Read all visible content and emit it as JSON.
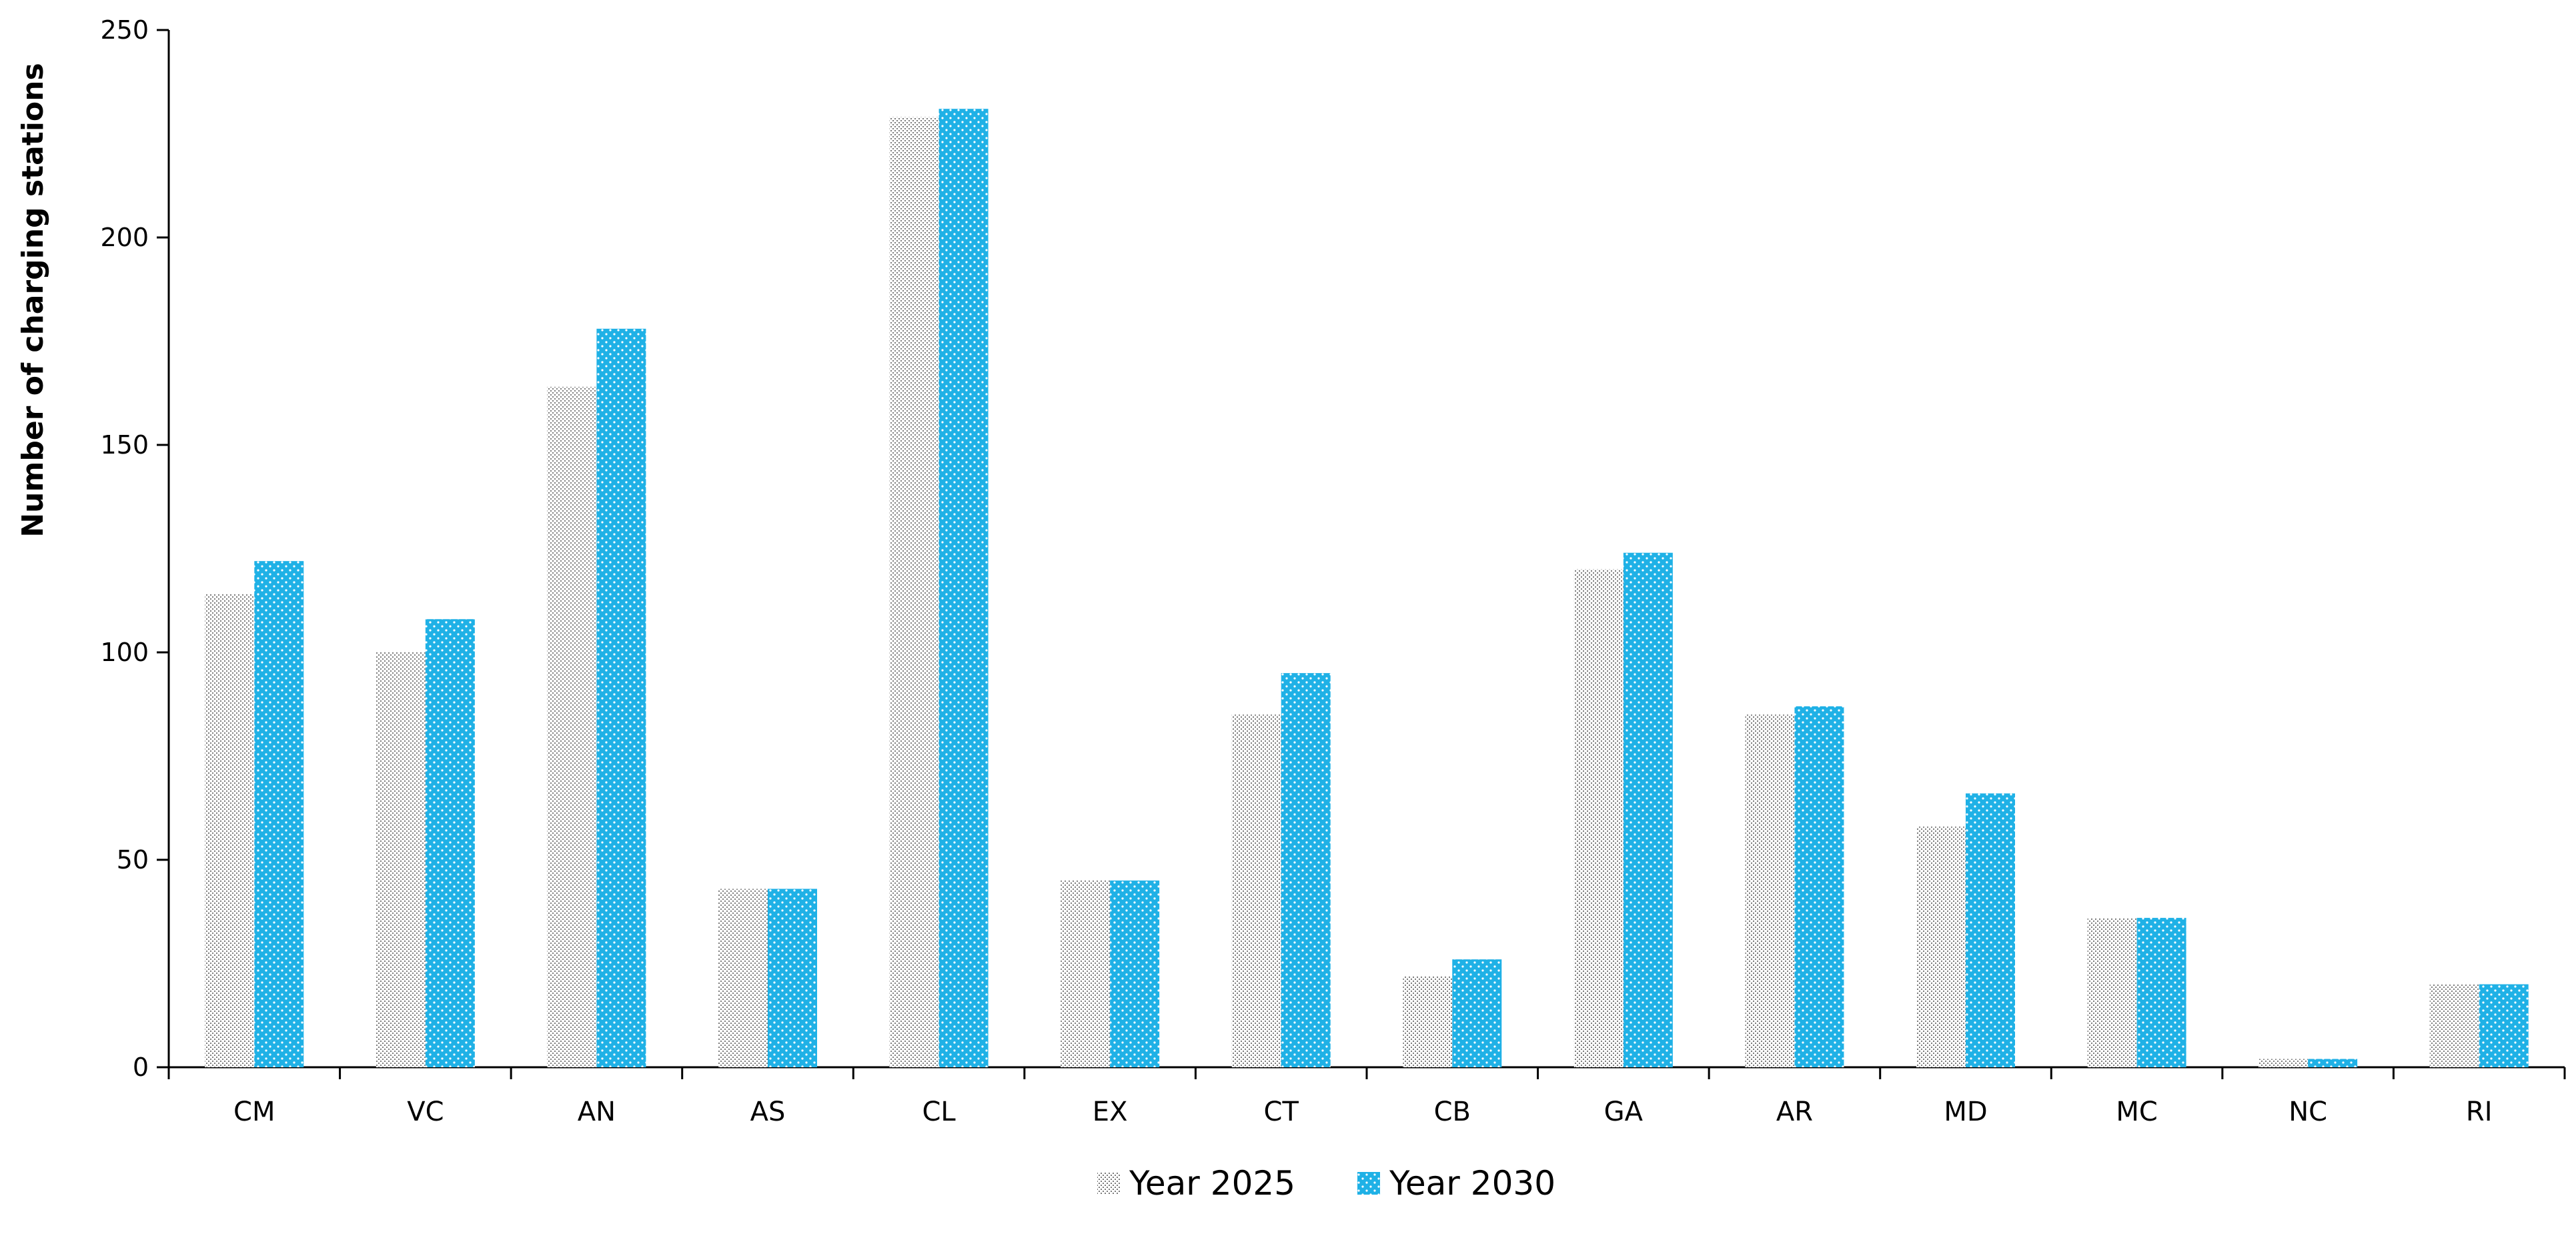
{
  "chart_data": {
    "type": "bar",
    "title": "",
    "xlabel": "",
    "ylabel": "Number of charging stations",
    "ylim": [
      0,
      250
    ],
    "yticks": [
      0,
      50,
      100,
      150,
      200,
      250
    ],
    "grid": false,
    "legend_position": "bottom",
    "categories": [
      "CM",
      "VC",
      "AN",
      "AS",
      "CL",
      "EX",
      "CT",
      "CB",
      "GA",
      "AR",
      "MD",
      "MC",
      "NC",
      "RI"
    ],
    "series": [
      {
        "name": "Year 2025",
        "color": "#a6a6a6",
        "pattern": "stipple-gray",
        "values": [
          114,
          100,
          164,
          43,
          229,
          45,
          85,
          22,
          120,
          85,
          58,
          36,
          2,
          20
        ]
      },
      {
        "name": "Year 2030",
        "color": "#1fb1e6",
        "pattern": "dotted-blue",
        "values": [
          122,
          108,
          178,
          43,
          231,
          45,
          95,
          26,
          124,
          87,
          66,
          36,
          2,
          20
        ]
      }
    ]
  }
}
